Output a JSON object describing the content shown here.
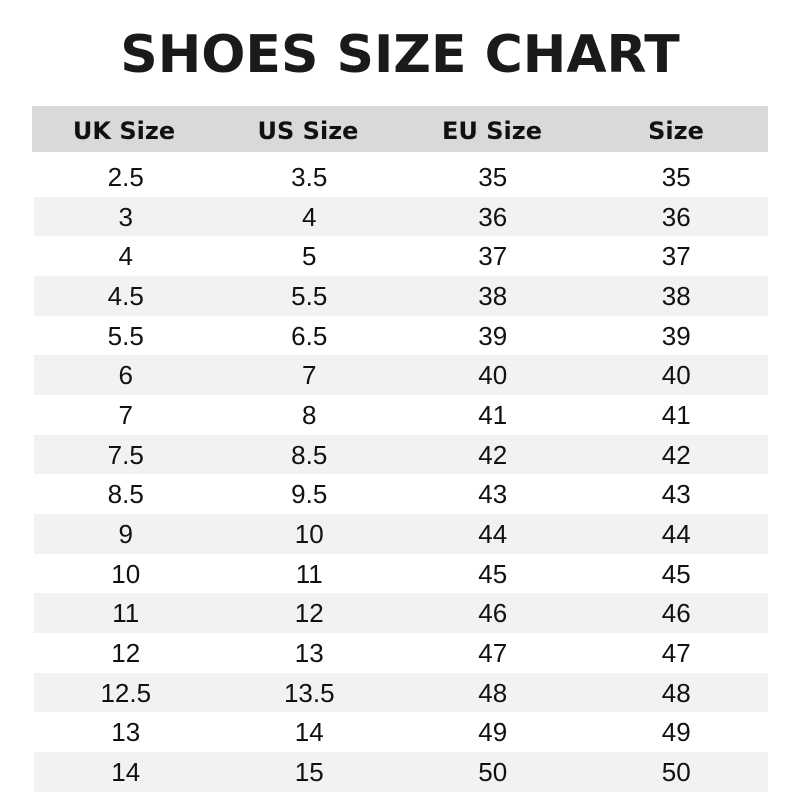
{
  "title": "SHOES SIZE CHART",
  "colors": {
    "header_bg": "#d9d9d9",
    "stripe_bg": "#f2f2f2"
  },
  "table": {
    "headers": [
      "UK Size",
      "US Size",
      "EU Size",
      "Size"
    ],
    "rows": [
      [
        "2.5",
        "3.5",
        "35",
        "35"
      ],
      [
        "3",
        "4",
        "36",
        "36"
      ],
      [
        "4",
        "5",
        "37",
        "37"
      ],
      [
        "4.5",
        "5.5",
        "38",
        "38"
      ],
      [
        "5.5",
        "6.5",
        "39",
        "39"
      ],
      [
        "6",
        "7",
        "40",
        "40"
      ],
      [
        "7",
        "8",
        "41",
        "41"
      ],
      [
        "7.5",
        "8.5",
        "42",
        "42"
      ],
      [
        "8.5",
        "9.5",
        "43",
        "43"
      ],
      [
        "9",
        "10",
        "44",
        "44"
      ],
      [
        "10",
        "11",
        "45",
        "45"
      ],
      [
        "11",
        "12",
        "46",
        "46"
      ],
      [
        "12",
        "13",
        "47",
        "47"
      ],
      [
        "12.5",
        "13.5",
        "48",
        "48"
      ],
      [
        "13",
        "14",
        "49",
        "49"
      ],
      [
        "14",
        "15",
        "50",
        "50"
      ]
    ]
  }
}
